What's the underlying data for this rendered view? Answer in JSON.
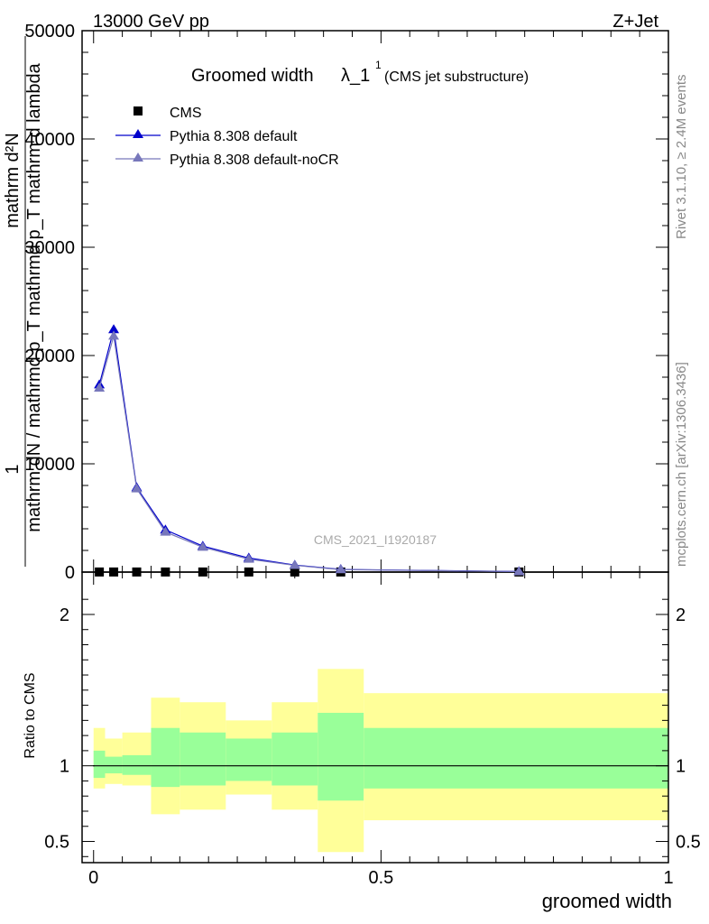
{
  "header": {
    "left": "13000 GeV pp",
    "right": "Z+Jet"
  },
  "title": {
    "main": "Groomed width",
    "symbol": "λ_1",
    "superscript": "1",
    "suffix": "(CMS jet substructure)"
  },
  "legend": [
    {
      "label": "CMS",
      "color": "#000000",
      "marker": "square"
    },
    {
      "label": "Pythia 8.308 default",
      "color": "#0000cc",
      "marker": "triangle"
    },
    {
      "label": "Pythia 8.308 default-noCR",
      "color": "#7777bb",
      "marker": "triangle"
    }
  ],
  "watermark": "CMS_2021_I1920187",
  "side_text": {
    "rivet": "Rivet 3.1.10, ≥ 2.4M events",
    "mcplots": "mcplots.cern.ch [arXiv:1306.3436]"
  },
  "ylabel_main": {
    "numerator_top": "1",
    "denominator_top": "mathrm dN / mathrmd p_T mathrmd p_T mathrm d lambda",
    "numerator_bottom": "mathrm d²N",
    "denominator_bottom": "mathrm dN / mathrmd p_T mathrmd p_T mathrm d lambda"
  },
  "ylabel_ratio": "Ratio to CMS",
  "xlabel": "groomed width",
  "chart_data": [
    {
      "type": "line",
      "panel": "main",
      "xlim": [
        -0.02,
        1.0
      ],
      "ylim": [
        0,
        50000
      ],
      "y_ticks": [
        0,
        10000,
        20000,
        30000,
        40000,
        50000
      ],
      "y_tick_labels": [
        "0",
        "10000",
        "20000",
        "30000",
        "40000",
        "50000"
      ],
      "series": [
        {
          "name": "CMS",
          "color": "#000000",
          "x": [
            0.01,
            0.035,
            0.075,
            0.125,
            0.19,
            0.27,
            0.35,
            0.43,
            0.74
          ],
          "y": [
            10,
            10,
            10,
            10,
            10,
            10,
            10,
            10,
            10
          ]
        },
        {
          "name": "Pythia 8.308 default",
          "color": "#0000cc",
          "x": [
            0.01,
            0.035,
            0.075,
            0.125,
            0.19,
            0.27,
            0.35,
            0.43,
            0.74
          ],
          "y": [
            17300,
            22400,
            7800,
            3900,
            2400,
            1300,
            650,
            250,
            50
          ]
        },
        {
          "name": "Pythia 8.308 default-noCR",
          "color": "#7777bb",
          "x": [
            0.01,
            0.035,
            0.075,
            0.125,
            0.19,
            0.27,
            0.35,
            0.43,
            0.74
          ],
          "y": [
            17000,
            21800,
            7700,
            3700,
            2300,
            1200,
            620,
            230,
            45
          ]
        }
      ]
    },
    {
      "type": "area",
      "panel": "ratio",
      "xlim": [
        -0.02,
        1.0
      ],
      "ylim": [
        0.36,
        2.28
      ],
      "x_ticks": [
        0,
        0.5,
        1
      ],
      "x_tick_labels": [
        "0",
        "0.5",
        "1"
      ],
      "y_ticks": [
        0.5,
        1,
        2
      ],
      "y_tick_labels": [
        "0.5",
        "1",
        "2"
      ],
      "reference": 1,
      "bins": [
        {
          "x0": 0.0,
          "x1": 0.02,
          "stat": [
            0.92,
            1.1
          ],
          "total": [
            0.85,
            1.25
          ]
        },
        {
          "x0": 0.02,
          "x1": 0.05,
          "stat": [
            0.95,
            1.06
          ],
          "total": [
            0.88,
            1.18
          ]
        },
        {
          "x0": 0.05,
          "x1": 0.1,
          "stat": [
            0.94,
            1.07
          ],
          "total": [
            0.87,
            1.22
          ]
        },
        {
          "x0": 0.1,
          "x1": 0.15,
          "stat": [
            0.86,
            1.25
          ],
          "total": [
            0.68,
            1.45
          ]
        },
        {
          "x0": 0.15,
          "x1": 0.23,
          "stat": [
            0.87,
            1.22
          ],
          "total": [
            0.71,
            1.42
          ]
        },
        {
          "x0": 0.23,
          "x1": 0.31,
          "stat": [
            0.9,
            1.18
          ],
          "total": [
            0.81,
            1.3
          ]
        },
        {
          "x0": 0.31,
          "x1": 0.39,
          "stat": [
            0.87,
            1.22
          ],
          "total": [
            0.71,
            1.42
          ]
        },
        {
          "x0": 0.39,
          "x1": 0.47,
          "stat": [
            0.77,
            1.35
          ],
          "total": [
            0.43,
            1.64
          ]
        },
        {
          "x0": 0.47,
          "x1": 1.0,
          "stat": [
            0.85,
            1.25
          ],
          "total": [
            0.64,
            1.48
          ]
        }
      ]
    }
  ]
}
